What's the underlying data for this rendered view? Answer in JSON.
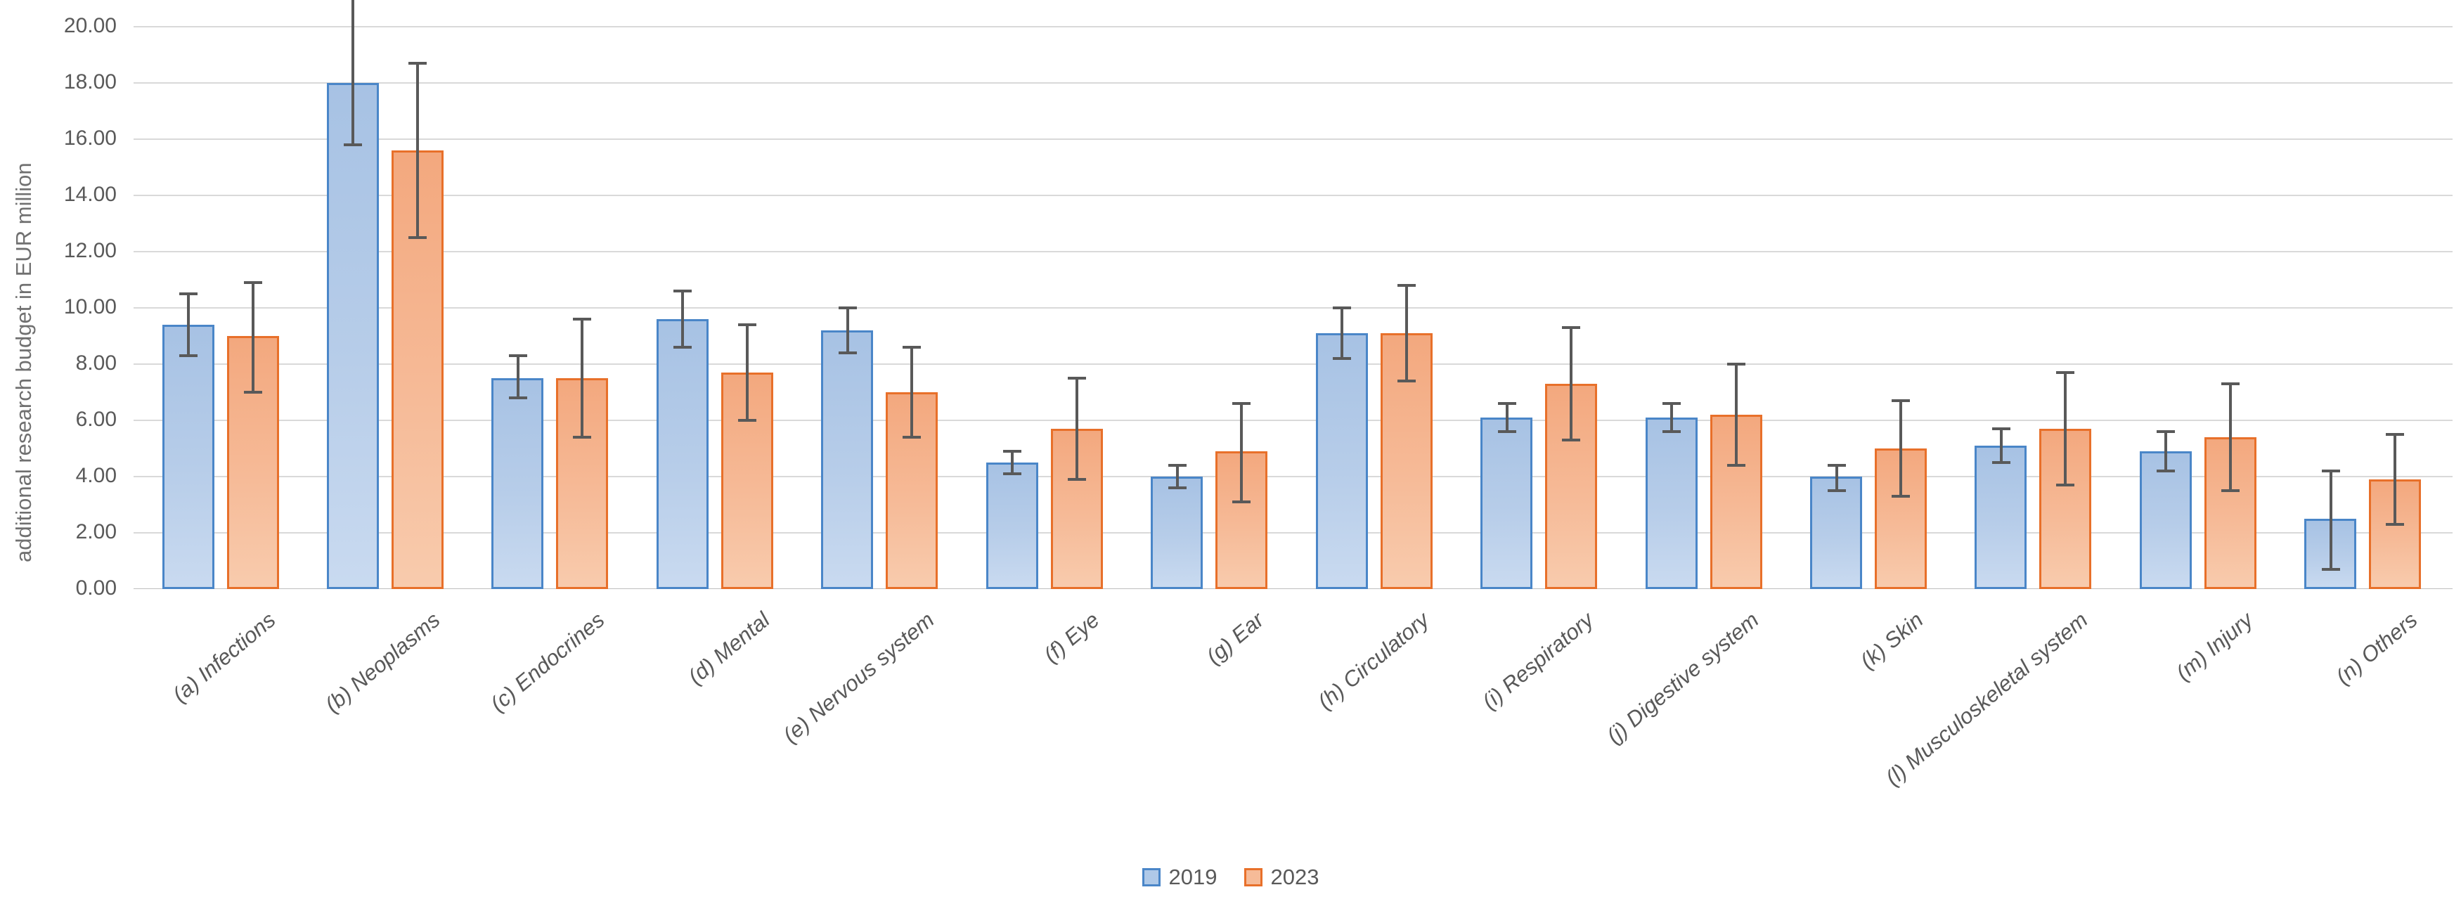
{
  "chart_data": {
    "type": "bar",
    "title": "",
    "xlabel": "",
    "ylabel": "additional research budget in EUR million",
    "ylim": [
      0,
      20
    ],
    "ytick_step": 2,
    "grid": true,
    "legend_position": "bottom-center",
    "error_bars": true,
    "yticks": [
      "0.00",
      "2.00",
      "4.00",
      "6.00",
      "8.00",
      "10.00",
      "12.00",
      "14.00",
      "16.00",
      "18.00",
      "20.00"
    ],
    "categories": [
      "(a) Infections",
      "(b) Neoplasms",
      "(c) Endocrines",
      "(d) Mental",
      "(e) Nervous system",
      "(f) Eye",
      "(g) Ear",
      "(h) Circulatory",
      "(i) Respiratory",
      "(j) Digestive system",
      "(k) Skin",
      "(l) Musculoskeletal system",
      "(m) Injury",
      "(n) Others"
    ],
    "series": [
      {
        "name": "2019",
        "fill": "#AFC9E8",
        "border": "#4A86C8",
        "values": [
          9.4,
          18.0,
          7.5,
          9.6,
          9.2,
          4.5,
          4.0,
          9.1,
          6.1,
          6.1,
          4.0,
          5.1,
          4.9,
          2.5
        ],
        "error_low": [
          8.3,
          15.8,
          6.8,
          8.6,
          8.4,
          4.1,
          3.6,
          8.2,
          5.6,
          5.6,
          3.5,
          4.5,
          4.2,
          0.7
        ],
        "error_high": [
          10.5,
          21.0,
          8.3,
          10.6,
          10.0,
          4.9,
          4.4,
          10.0,
          6.6,
          6.6,
          4.4,
          5.7,
          5.6,
          4.2
        ]
      },
      {
        "name": "2023",
        "fill": "#F6BB98",
        "border": "#E8702A",
        "values": [
          9.0,
          15.6,
          7.5,
          7.7,
          7.0,
          5.7,
          4.9,
          9.1,
          7.3,
          6.2,
          5.0,
          5.7,
          5.4,
          3.9
        ],
        "error_low": [
          7.0,
          12.5,
          5.4,
          6.0,
          5.4,
          3.9,
          3.1,
          7.4,
          5.3,
          4.4,
          3.3,
          3.7,
          3.5,
          2.3
        ],
        "error_high": [
          10.9,
          18.7,
          9.6,
          9.4,
          8.6,
          7.5,
          6.6,
          10.8,
          9.3,
          8.0,
          6.7,
          7.7,
          7.3,
          5.5
        ]
      }
    ]
  },
  "legend": {
    "items": [
      {
        "label": "2019",
        "fill": "#AFC9E8",
        "border": "#4A86C8"
      },
      {
        "label": "2023",
        "fill": "#F6BB98",
        "border": "#E8702A"
      }
    ]
  },
  "colors": {
    "gridline": "#D9D9D9",
    "axisline": "#BFBFBF",
    "error_bar": "#595959",
    "tick_text": "#595959",
    "category_text": "#595959",
    "axis_title_text": "#707070",
    "legend_text": "#595959"
  }
}
